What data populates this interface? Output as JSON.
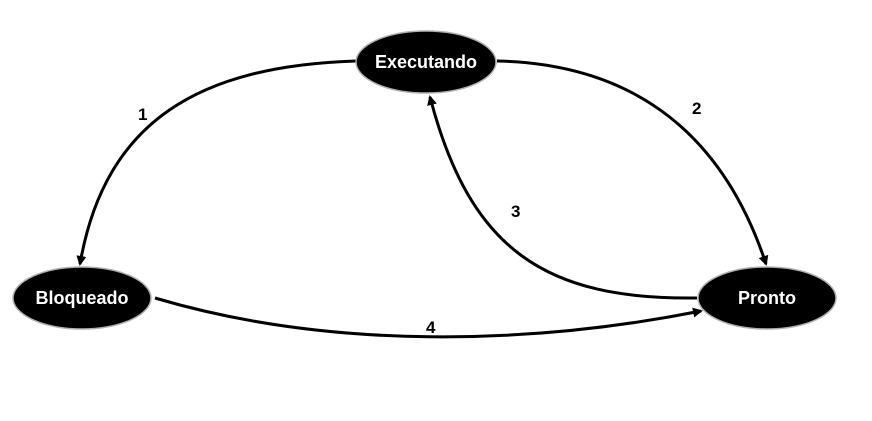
{
  "diagram": {
    "nodes": [
      {
        "id": "executando",
        "label": "Executando"
      },
      {
        "id": "bloqueado",
        "label": "Bloqueado"
      },
      {
        "id": "pronto",
        "label": "Pronto"
      }
    ],
    "edges": [
      {
        "id": "e1",
        "from": "executando",
        "to": "bloqueado",
        "label": "1"
      },
      {
        "id": "e2",
        "from": "executando",
        "to": "pronto",
        "label": "2"
      },
      {
        "id": "e3",
        "from": "pronto",
        "to": "executando",
        "label": "3"
      },
      {
        "id": "e4",
        "from": "bloqueado",
        "to": "pronto",
        "label": "4"
      }
    ],
    "colors": {
      "node_fill": "#000000",
      "node_text": "#ffffff",
      "edge": "#000000",
      "background": "#ffffff"
    }
  }
}
